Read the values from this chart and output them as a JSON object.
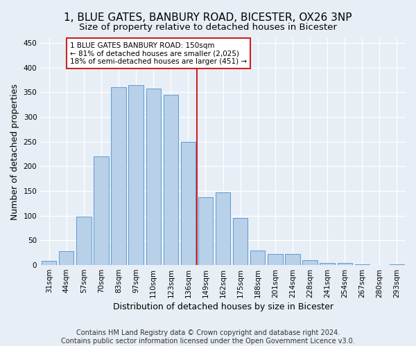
{
  "title": "1, BLUE GATES, BANBURY ROAD, BICESTER, OX26 3NP",
  "subtitle": "Size of property relative to detached houses in Bicester",
  "xlabel": "Distribution of detached houses by size in Bicester",
  "ylabel": "Number of detached properties",
  "categories": [
    "31sqm",
    "44sqm",
    "57sqm",
    "70sqm",
    "83sqm",
    "97sqm",
    "110sqm",
    "123sqm",
    "136sqm",
    "149sqm",
    "162sqm",
    "175sqm",
    "188sqm",
    "201sqm",
    "214sqm",
    "228sqm",
    "241sqm",
    "254sqm",
    "267sqm",
    "280sqm",
    "293sqm"
  ],
  "values": [
    8,
    28,
    98,
    220,
    360,
    365,
    358,
    345,
    250,
    138,
    148,
    96,
    30,
    22,
    22,
    10,
    4,
    4,
    1,
    0,
    2
  ],
  "bar_color": "#b8d0e8",
  "bar_edge_color": "#5b9bd5",
  "annotation_text": "1 BLUE GATES BANBURY ROAD: 150sqm\n← 81% of detached houses are smaller (2,025)\n18% of semi-detached houses are larger (451) →",
  "annotation_box_color": "#ffffff",
  "annotation_box_edge_color": "#cc2222",
  "ref_line_color": "#cc2222",
  "ylim": [
    0,
    460
  ],
  "yticks": [
    0,
    50,
    100,
    150,
    200,
    250,
    300,
    350,
    400,
    450
  ],
  "footer_line1": "Contains HM Land Registry data © Crown copyright and database right 2024.",
  "footer_line2": "Contains public sector information licensed under the Open Government Licence v3.0.",
  "background_color": "#e8eef6",
  "grid_color": "#ffffff",
  "title_fontsize": 11,
  "subtitle_fontsize": 9.5,
  "axis_label_fontsize": 9,
  "tick_fontsize": 7.5,
  "annotation_fontsize": 7.5,
  "footer_fontsize": 7
}
